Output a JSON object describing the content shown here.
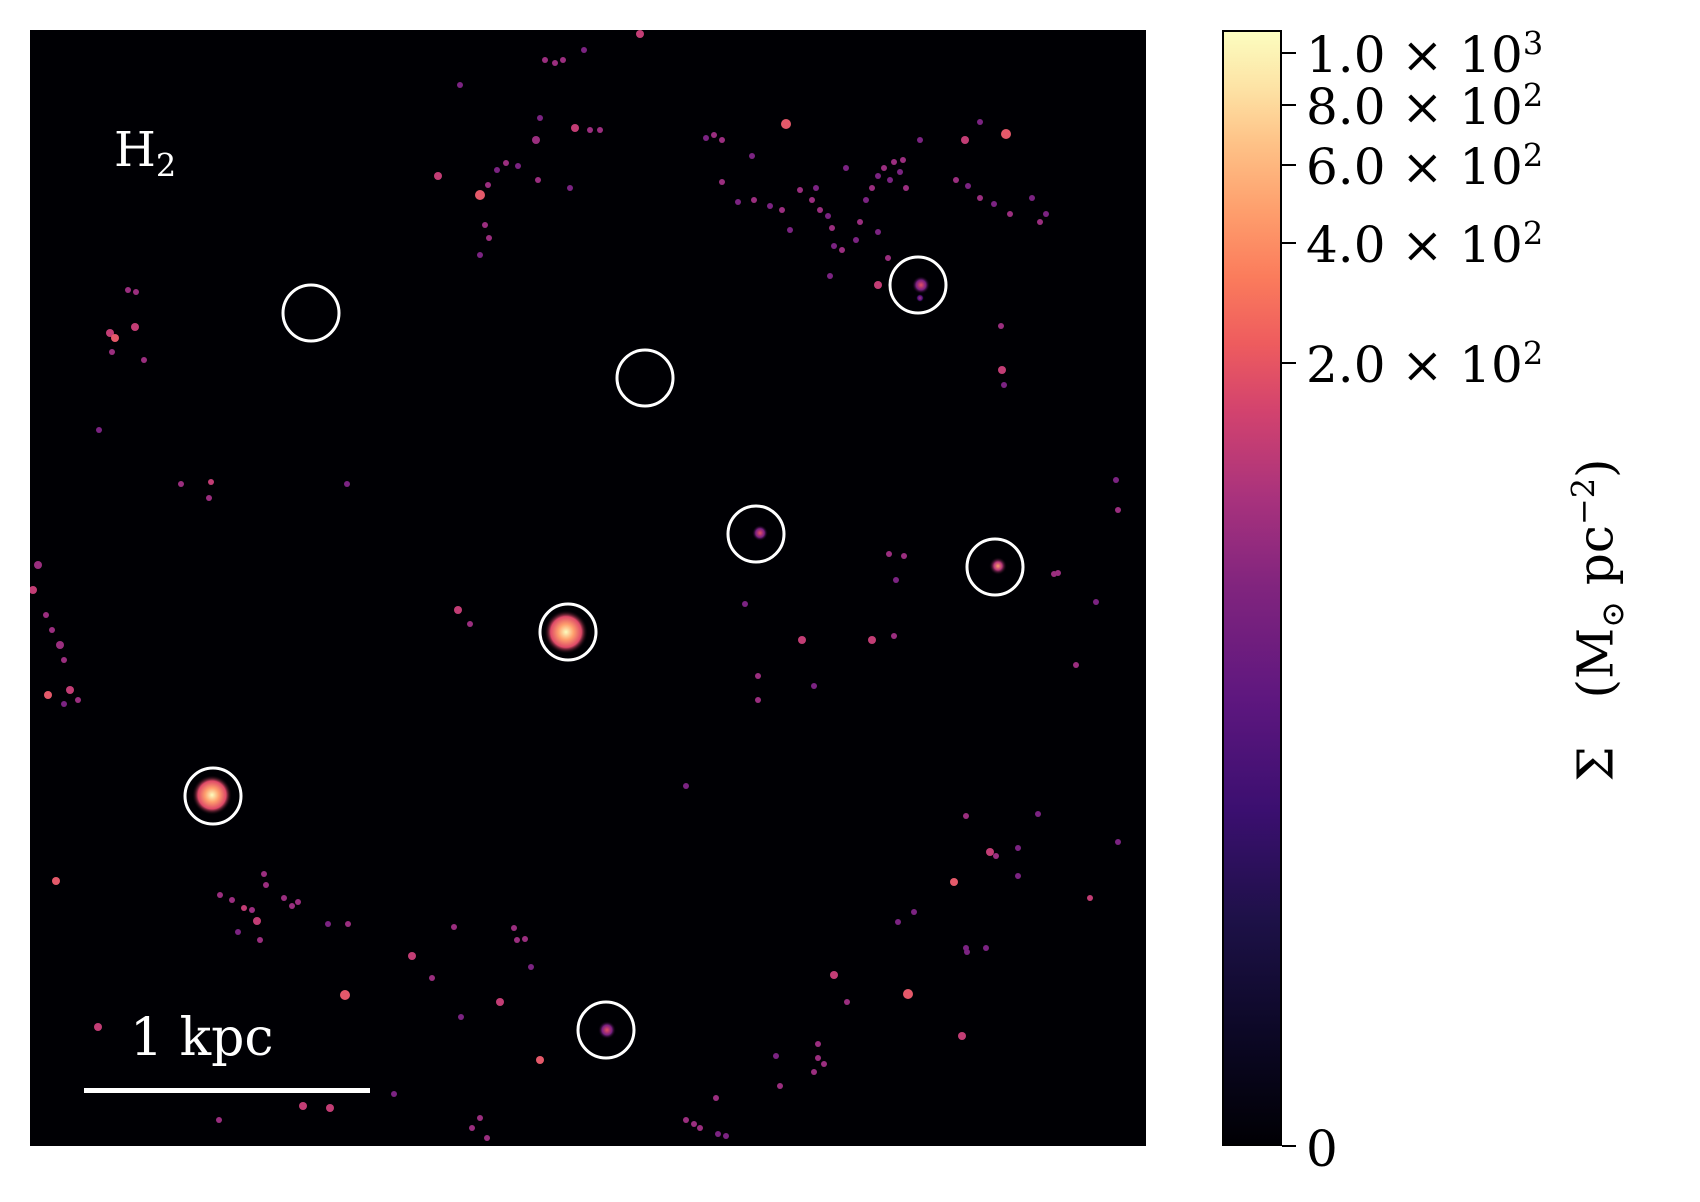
{
  "map": {
    "species_label": "H",
    "species_subscript": "2",
    "scale_bar_label": "1 kpc",
    "background_color": "#000004"
  },
  "colorbar": {
    "colormap": "magma",
    "scale": "symlog",
    "ticks": [
      {
        "mantissa": "1.0",
        "exponent": "3",
        "value": 1000
      },
      {
        "mantissa": "8.0",
        "exponent": "2",
        "value": 800
      },
      {
        "mantissa": "6.0",
        "exponent": "2",
        "value": 600
      },
      {
        "mantissa": "4.0",
        "exponent": "2",
        "value": 400
      },
      {
        "mantissa": "2.0",
        "exponent": "2",
        "value": 200
      },
      {
        "plain": "0",
        "value": 0
      }
    ],
    "title_symbol": "Σ",
    "title_units": "M",
    "title_units_sub": "⊙",
    "title_units_mid": " pc",
    "title_units_sup": "−2"
  }
}
